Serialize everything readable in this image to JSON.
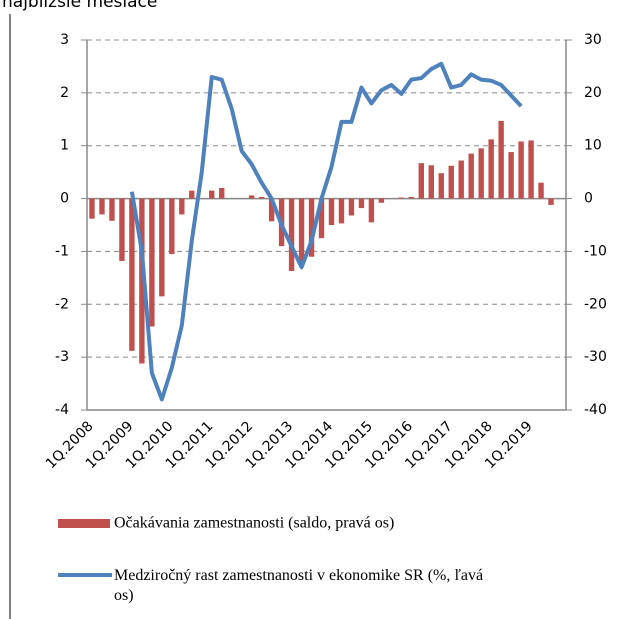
{
  "chart_data": {
    "type": "bar_line",
    "title": "najbližšie mesiace",
    "categories": [
      "1Q.2008",
      null,
      null,
      null,
      "1Q.2009",
      null,
      null,
      null,
      "1Q.2010",
      null,
      null,
      null,
      "1Q.2011",
      null,
      null,
      null,
      "1Q.2012",
      null,
      null,
      null,
      "1Q.2013",
      null,
      null,
      null,
      "1Q.2014",
      null,
      null,
      null,
      "1Q.2015",
      null,
      null,
      null,
      "1Q.2016",
      null,
      null,
      null,
      "1Q.2017",
      null,
      null,
      null,
      "1Q.2018",
      null,
      null,
      null,
      "1Q.2019",
      null,
      null
    ],
    "series": [
      {
        "name": "Očakávania zamestnanosti (saldo, pravá os)",
        "color": "#c0504d",
        "kind": "bar",
        "values": [
          -0.38,
          -0.3,
          -0.42,
          -1.18,
          -2.88,
          -3.12,
          -2.42,
          -1.85,
          -1.05,
          -0.3,
          0.15,
          0,
          0.15,
          0.2,
          0,
          0,
          0.06,
          0.03,
          -0.43,
          -0.9,
          -1.37,
          -1.2,
          -1.1,
          -0.75,
          -0.5,
          -0.47,
          -0.32,
          -0.18,
          -0.45,
          -0.08,
          0,
          0.02,
          0.03,
          0.67,
          0.63,
          0.48,
          0.62,
          0.72,
          0.85,
          0.95,
          1.12,
          1.47,
          0.88,
          1.08,
          1.1,
          0.3,
          -0.12
        ]
      },
      {
        "name": "Medziročný rast zamestnanosti v ekonomike SR (%, ľavá os)",
        "color": "#4f81bd",
        "kind": "line",
        "axis": "y2",
        "values": [
          null,
          null,
          null,
          null,
          1.3,
          -10,
          -33,
          -38,
          -32,
          -24,
          -8,
          5,
          23,
          22.5,
          17,
          9,
          6.5,
          3,
          0,
          -5,
          -9,
          -13,
          -8,
          0,
          6,
          14.5,
          14.5,
          21,
          18,
          20.5,
          21.5,
          19.8,
          22.5,
          22.8,
          24.5,
          25.5,
          21,
          21.5,
          23.5,
          22.5,
          22.3,
          21.5,
          19.5,
          17.5,
          null,
          null,
          null
        ]
      }
    ],
    "ylim": [
      -4,
      3
    ],
    "yticks": [
      -4,
      -3,
      -2,
      -1,
      0,
      1,
      2,
      3
    ],
    "y2lim": [
      -40,
      30
    ],
    "y2ticks": [
      -40,
      -30,
      -20,
      -10,
      0,
      10,
      20,
      30
    ],
    "grid": true
  }
}
